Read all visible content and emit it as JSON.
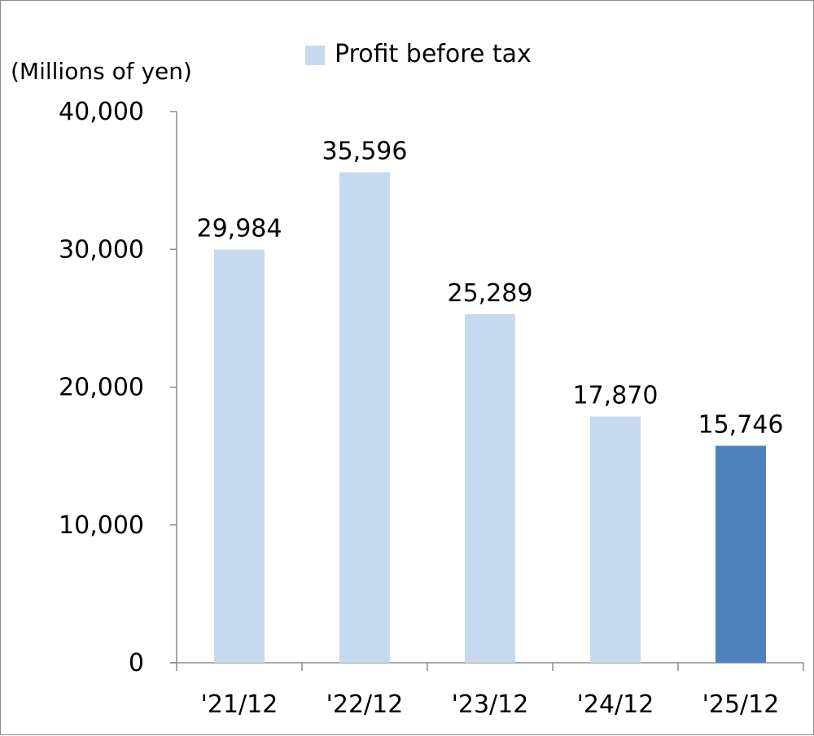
{
  "chart_data": {
    "type": "bar",
    "unit_label": "(Millions of yen)",
    "legend": {
      "position": "top",
      "entries": [
        {
          "label": "Profit before tax",
          "color": "#c6d9f1"
        }
      ]
    },
    "categories": [
      "'21/12",
      "'22/12",
      "'23/12",
      "'24/12",
      "'25/12"
    ],
    "series": [
      {
        "name": "Profit before tax",
        "values": [
          29984,
          35596,
          25289,
          17870,
          15746
        ],
        "value_labels": [
          "29,984",
          "35,596",
          "25,289",
          "17,870",
          "15,746"
        ],
        "colors": [
          "#c6d9f1",
          "#c6d9f1",
          "#c6d9f1",
          "#c6d9f1",
          "#4f81bd"
        ]
      }
    ],
    "y_ticks": [
      0,
      10000,
      20000,
      30000,
      40000
    ],
    "y_tick_labels": [
      "0",
      "10,000",
      "20,000",
      "30,000",
      "40,000"
    ],
    "ylim": [
      0,
      40000
    ],
    "grid": false,
    "axis_color": "#8c8c8c"
  }
}
